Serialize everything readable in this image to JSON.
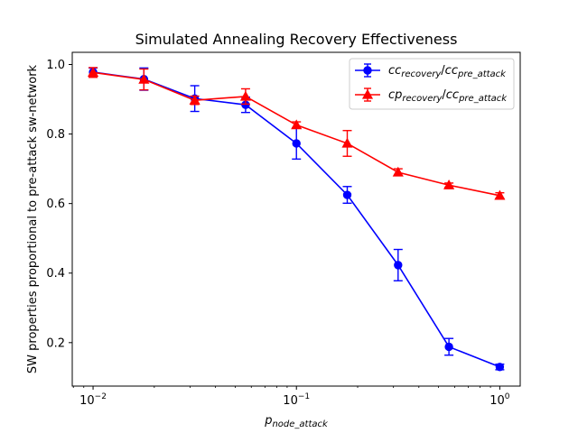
{
  "chart_data": {
    "type": "line",
    "title": "Simulated Annealing Recovery Effectiveness",
    "xlabel": "p",
    "xlabel_sub": "node_attack",
    "ylabel": "SW properties proportional to pre-attack sw-network",
    "xscale": "log",
    "xlim": [
      0.0079,
      1.26
    ],
    "ylim": [
      0.075,
      1.035
    ],
    "x": [
      0.01,
      0.01778,
      0.03162,
      0.05623,
      0.1,
      0.1778,
      0.3162,
      0.5623,
      1.0
    ],
    "xticks": [
      {
        "value": 0.01,
        "base": "10",
        "exp": "−2"
      },
      {
        "value": 0.1,
        "base": "10",
        "exp": "−1"
      },
      {
        "value": 1,
        "base": "10",
        "exp": "0"
      }
    ],
    "yticks": [
      {
        "value": 0.2,
        "label": "0.2"
      },
      {
        "value": 0.4,
        "label": "0.4"
      },
      {
        "value": 0.6,
        "label": "0.6"
      },
      {
        "value": 0.8,
        "label": "0.8"
      },
      {
        "value": 1.0,
        "label": "1.0"
      }
    ],
    "grid": false,
    "legend_position": "top-right",
    "series": [
      {
        "name_main": "cc",
        "name_sub": "recovery",
        "name_main2": "cc",
        "name_sub2": "pre_attack",
        "color": "#0000ff",
        "marker": "circle",
        "values": [
          0.978,
          0.958,
          0.902,
          0.884,
          0.773,
          0.625,
          0.423,
          0.188,
          0.13
        ],
        "errors": [
          0.012,
          0.032,
          0.037,
          0.022,
          0.045,
          0.024,
          0.045,
          0.024,
          0.008
        ]
      },
      {
        "name_main": "cp",
        "name_sub": "recovery",
        "name_main2": "cc",
        "name_sub2": "pre_attack",
        "color": "#ff0000",
        "marker": "triangle",
        "values": [
          0.977,
          0.957,
          0.897,
          0.908,
          0.826,
          0.773,
          0.69,
          0.653,
          0.623
        ],
        "errors": [
          0.014,
          0.03,
          0.012,
          0.022,
          0.009,
          0.037,
          0.01,
          0.006,
          0.008
        ]
      }
    ]
  }
}
